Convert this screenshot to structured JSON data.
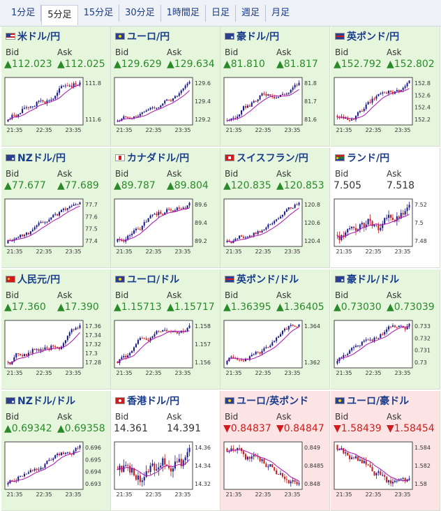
{
  "tabs": [
    "1分足",
    "5分足",
    "15分足",
    "30分足",
    "1時間足",
    "日足",
    "週足",
    "月足"
  ],
  "active_tab": 1,
  "bid_label": "Bid",
  "ask_label": "Ask",
  "colors": {
    "up_bg": "#e6f6dd",
    "down_bg": "#fde4e4",
    "up_text": "#2a8a2a",
    "down_text": "#d01c1c",
    "candle_up": "#1a1a8c",
    "candle_down": "#d01c1c",
    "ma": "#b010b0"
  },
  "pairs": [
    {
      "title": "米ドル/円",
      "flag": "us",
      "trend": "up",
      "bid": "▲112.023",
      "ask": "▲112.025",
      "x_ticks": [
        "21:35",
        "22:35",
        "23:35"
      ],
      "y_ticks": [
        "111.8",
        "111.6"
      ]
    },
    {
      "title": "ユーロ/円",
      "flag": "eu",
      "trend": "up",
      "bid": "▲129.629",
      "ask": "▲129.634",
      "x_ticks": [
        "21:35",
        "22:35",
        "23:35"
      ],
      "y_ticks": [
        "129.6",
        "129.4",
        "129.2"
      ]
    },
    {
      "title": "豪ドル/円",
      "flag": "au",
      "trend": "up",
      "bid": "▲81.810",
      "ask": "▲81.817",
      "x_ticks": [
        "21:35",
        "22:35",
        "23:35"
      ],
      "y_ticks": [
        "81.8",
        "81.7",
        "81.6"
      ]
    },
    {
      "title": "英ポンド/円",
      "flag": "gb",
      "trend": "up",
      "bid": "▲152.792",
      "ask": "▲152.802",
      "x_ticks": [
        "21:35",
        "22:35",
        "23:35"
      ],
      "y_ticks": [
        "152.8",
        "152.6",
        "152.4",
        "152.2"
      ]
    },
    {
      "title": "NZドル/円",
      "flag": "nz",
      "trend": "up",
      "bid": "▲77.677",
      "ask": "▲77.689",
      "x_ticks": [
        "21:35",
        "22:35",
        "23:35"
      ],
      "y_ticks": [
        "77.7",
        "77.6",
        "77.5",
        "77.4"
      ]
    },
    {
      "title": "カナダドル/円",
      "flag": "ca",
      "trend": "up",
      "bid": "▲89.787",
      "ask": "▲89.804",
      "x_ticks": [
        "21:35",
        "22:35",
        "23:35"
      ],
      "y_ticks": [
        "89.6",
        "89.4",
        "89.2"
      ]
    },
    {
      "title": "スイスフラン/円",
      "flag": "ch",
      "trend": "up",
      "bid": "▲120.835",
      "ask": "▲120.853",
      "x_ticks": [
        "21:35",
        "22:35",
        "23:35"
      ],
      "y_ticks": [
        "120.8",
        "120.6",
        "120.4"
      ]
    },
    {
      "title": "ランド/円",
      "flag": "za",
      "trend": "flat",
      "bid": "7.505",
      "ask": "7.518",
      "x_ticks": [
        "21:35",
        "22:35",
        "23:35"
      ],
      "y_ticks": [
        "7.52",
        "7.5",
        "7.48"
      ]
    },
    {
      "title": "人民元/円",
      "flag": "cn",
      "trend": "up",
      "bid": "▲17.360",
      "ask": "▲17.390",
      "x_ticks": [
        "21:35",
        "22:35",
        "23:35"
      ],
      "y_ticks": [
        "17.36",
        "17.34",
        "17.32",
        "17.3",
        "17.28"
      ]
    },
    {
      "title": "ユーロ/ドル",
      "flag": "eu",
      "trend": "up",
      "bid": "▲1.15713",
      "ask": "▲1.15717",
      "x_ticks": [
        "21:35",
        "22:35",
        "23:35"
      ],
      "y_ticks": [
        "1.158",
        "1.157",
        "1.156"
      ]
    },
    {
      "title": "英ポンド/ドル",
      "flag": "gb",
      "trend": "up",
      "bid": "▲1.36395",
      "ask": "▲1.36405",
      "x_ticks": [
        "21:35",
        "22:35",
        "23:35"
      ],
      "y_ticks": [
        "1.364",
        "1.362"
      ]
    },
    {
      "title": "豪ドル/ドル",
      "flag": "au",
      "trend": "up",
      "bid": "▲0.73030",
      "ask": "▲0.73039",
      "x_ticks": [
        "21:35",
        "22:35",
        "23:35"
      ],
      "y_ticks": [
        "0.733",
        "0.732",
        "0.731",
        "0.73"
      ]
    },
    {
      "title": "NZドル/ドル",
      "flag": "nz",
      "trend": "up",
      "bid": "▲0.69342",
      "ask": "▲0.69358",
      "x_ticks": [
        "21:35",
        "22:35",
        "23:35"
      ],
      "y_ticks": [
        "0.696",
        "0.695",
        "0.694",
        "0.693"
      ]
    },
    {
      "title": "香港ドル/円",
      "flag": "hk",
      "trend": "flat",
      "bid": "14.361",
      "ask": "14.391",
      "x_ticks": [
        "21:35",
        "22:35",
        "23:35"
      ],
      "y_ticks": [
        "14.36",
        "14.34",
        "14.32"
      ]
    },
    {
      "title": "ユーロ/英ポンド",
      "flag": "eu",
      "trend": "down",
      "bid": "▼0.84837",
      "ask": "▼0.84847",
      "x_ticks": [
        "21:35",
        "22:35",
        "23:35"
      ],
      "y_ticks": [
        "0.849",
        "0.8485",
        "0.848"
      ]
    },
    {
      "title": "ユーロ/豪ドル",
      "flag": "eu",
      "trend": "down",
      "bid": "▼1.58439",
      "ask": "▼1.58454",
      "x_ticks": [
        "21:35",
        "22:35",
        "23:35"
      ],
      "y_ticks": [
        "1.584",
        "1.582",
        "1.58"
      ]
    }
  ]
}
